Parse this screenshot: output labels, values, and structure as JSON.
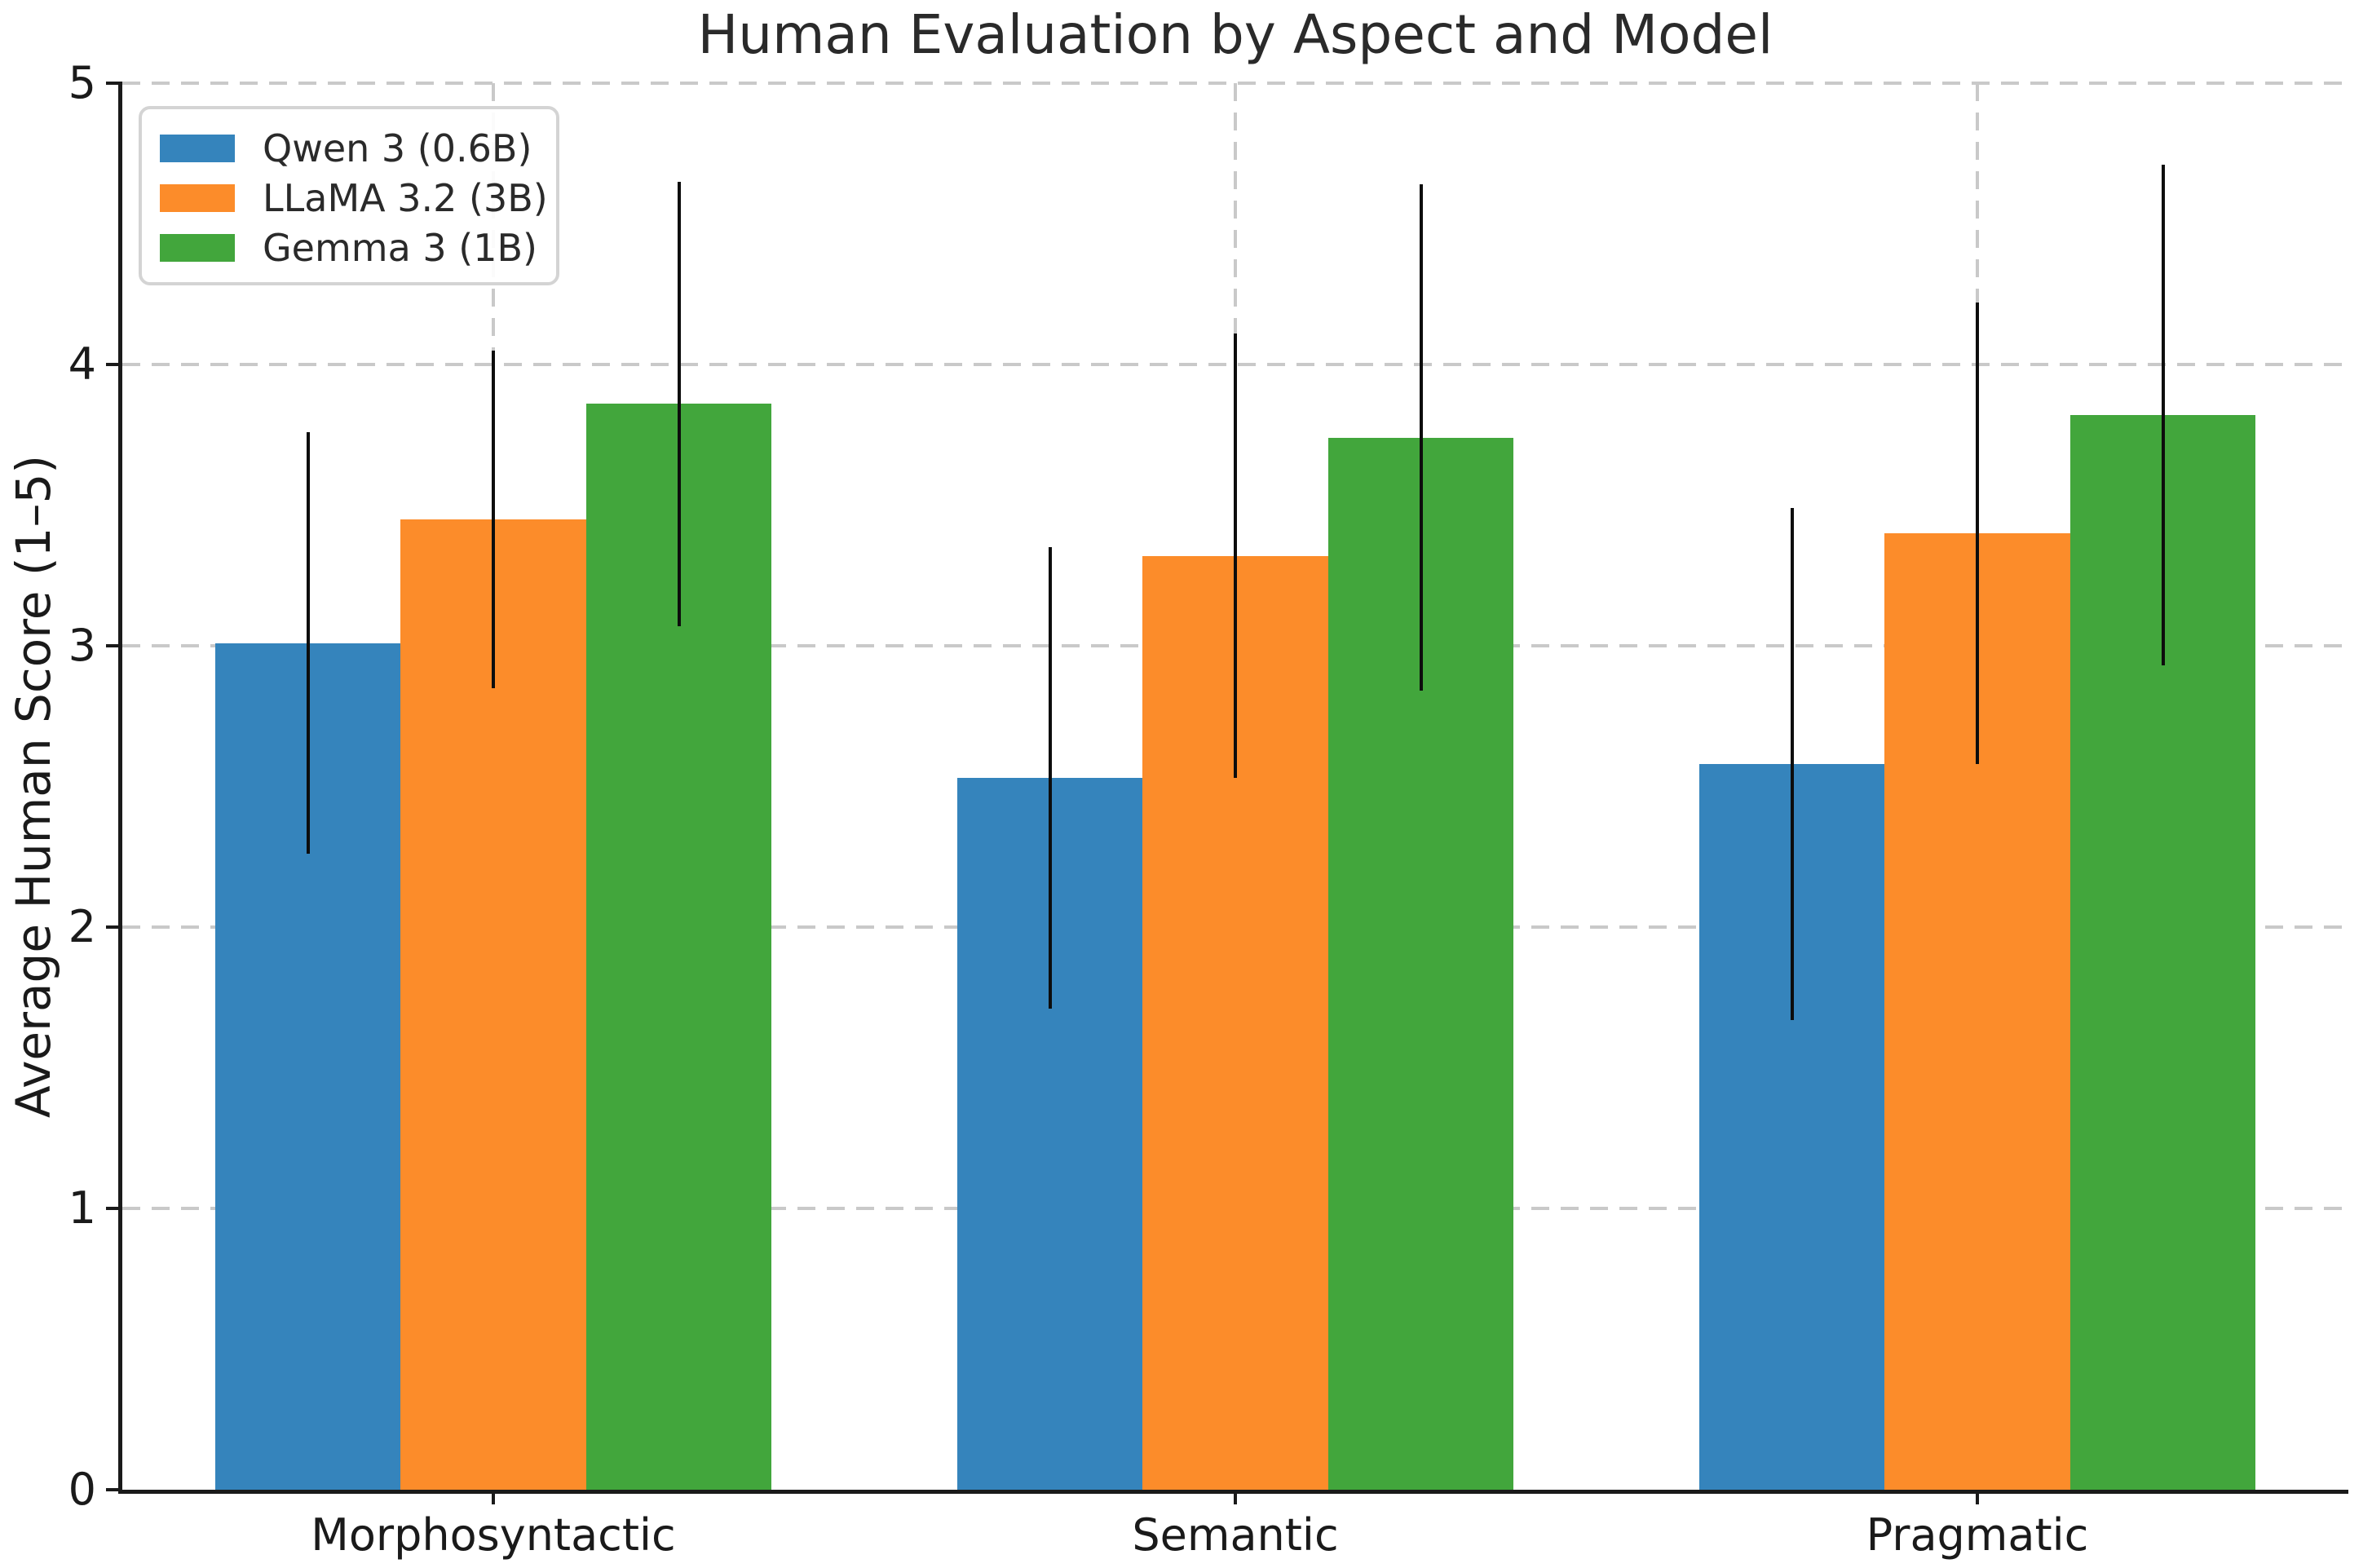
{
  "chart_data": {
    "type": "bar",
    "title": "Human Evaluation by Aspect and Model",
    "ylabel": "Average Human Score (1–5)",
    "xlabel": "",
    "categories": [
      "Morphosyntactic",
      "Semantic",
      "Pragmatic"
    ],
    "series": [
      {
        "name": "Qwen 3 (0.6B)",
        "color": "#3584bc",
        "values": [
          3.01,
          2.53,
          2.58
        ],
        "errors": [
          0.75,
          0.82,
          0.91
        ]
      },
      {
        "name": "LLaMA 3.2 (3B)",
        "color": "#fc8c2a",
        "values": [
          3.45,
          3.32,
          3.4
        ],
        "errors": [
          0.6,
          0.79,
          0.82
        ]
      },
      {
        "name": "Gemma 3 (1B)",
        "color": "#42a63c",
        "values": [
          3.86,
          3.74,
          3.82
        ],
        "errors": [
          0.79,
          0.9,
          0.89
        ]
      }
    ],
    "ylim": [
      0,
      5
    ],
    "yticks": [
      "0",
      "1",
      "2",
      "3",
      "4",
      "5"
    ],
    "grid": true,
    "grid_style": "dashed",
    "grid_color": "#c9c9c9",
    "axis_color": "#1a1a1a",
    "error_bar_color": "#0d0d0d",
    "legend_position": "upper left",
    "bar_group_width_fraction": 0.75
  }
}
